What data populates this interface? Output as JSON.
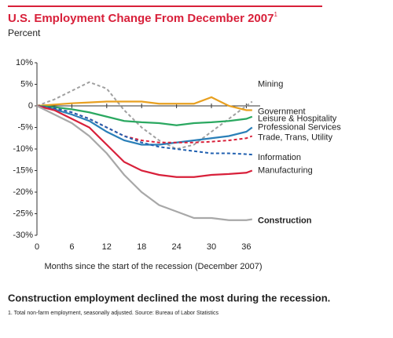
{
  "chart_data": {
    "type": "line",
    "title": "U.S. Employment Change From December 2007",
    "title_note": "1",
    "subtitle": "Percent",
    "x_label": "Months since the start of the recession (December 2007)",
    "x": [
      0,
      3,
      6,
      9,
      12,
      15,
      18,
      21,
      24,
      27,
      30,
      33,
      36,
      37
    ],
    "xlim": [
      0,
      40
    ],
    "xticks": [
      0,
      6,
      12,
      18,
      24,
      30,
      36
    ],
    "ylim": [
      -30,
      10
    ],
    "yticks": [
      {
        "value": 10,
        "label": "10%"
      },
      {
        "value": 5,
        "label": "5%"
      },
      0,
      {
        "value": -5,
        "label": "-5%"
      },
      {
        "value": -10,
        "label": "-10%"
      },
      {
        "value": -15,
        "label": "-15%"
      },
      {
        "value": -20,
        "label": "-20%"
      },
      {
        "value": -25,
        "label": "-25%"
      },
      {
        "value": -30,
        "label": "-30%"
      }
    ],
    "series": [
      {
        "name": "Mining",
        "color": "#a0a0a0",
        "dashed": true,
        "values": [
          0,
          1.5,
          3.5,
          5.5,
          4,
          -1,
          -5,
          -8,
          -10,
          -9,
          -6,
          -3,
          0,
          1
        ]
      },
      {
        "name": "Government",
        "color": "#e8a020",
        "dashed": false,
        "values": [
          0,
          0.3,
          0.6,
          0.8,
          1,
          1,
          1,
          0.5,
          0.5,
          0.5,
          2,
          0,
          -1,
          -1
        ]
      },
      {
        "name": "Leisure & Hospitality",
        "color": "#2aa860",
        "dashed": false,
        "values": [
          0,
          -0.3,
          -0.8,
          -1.5,
          -2.5,
          -3.5,
          -3.8,
          -4,
          -4.5,
          -4,
          -3.8,
          -3.5,
          -3,
          -2.5
        ]
      },
      {
        "name": "Professional Services",
        "color": "#2a7fb8",
        "dashed": false,
        "values": [
          0,
          -0.8,
          -2,
          -3.5,
          -6,
          -8,
          -9,
          -9,
          -8.5,
          -8,
          -7.5,
          -7,
          -6,
          -5
        ]
      },
      {
        "name": "Trade, Trans, Utility",
        "color": "#d8203a",
        "dashed": true,
        "values": [
          0,
          -0.5,
          -1.5,
          -3,
          -5,
          -7,
          -8,
          -8.5,
          -8.5,
          -8.5,
          -8.3,
          -8,
          -7.5,
          -7
        ]
      },
      {
        "name": "Information",
        "color": "#2060b0",
        "dashed": true,
        "values": [
          0,
          -0.5,
          -1.5,
          -3,
          -5,
          -7,
          -8.5,
          -9.5,
          -10,
          -10.5,
          -11,
          -11,
          -11.2,
          -11.3
        ]
      },
      {
        "name": "Manufacturing",
        "color": "#d8203a",
        "dashed": false,
        "values": [
          0,
          -1,
          -3,
          -5,
          -9,
          -13,
          -15,
          -16,
          -16.5,
          -16.5,
          -16,
          -15.8,
          -15.5,
          -15
        ]
      },
      {
        "name": "Construction",
        "color": "#a8a8a8",
        "dashed": false,
        "bold_label": true,
        "values": [
          0,
          -2,
          -4,
          -7,
          -11,
          -16,
          -20,
          -23,
          -24.5,
          -26,
          -26,
          -26.5,
          -26.5,
          -26.3
        ]
      }
    ],
    "caption": "Construction employment declined the most during the recession.",
    "footnote": "1. Total non-farm employment, seasonally adjusted. Source: Bureau of Labor Statistics"
  }
}
